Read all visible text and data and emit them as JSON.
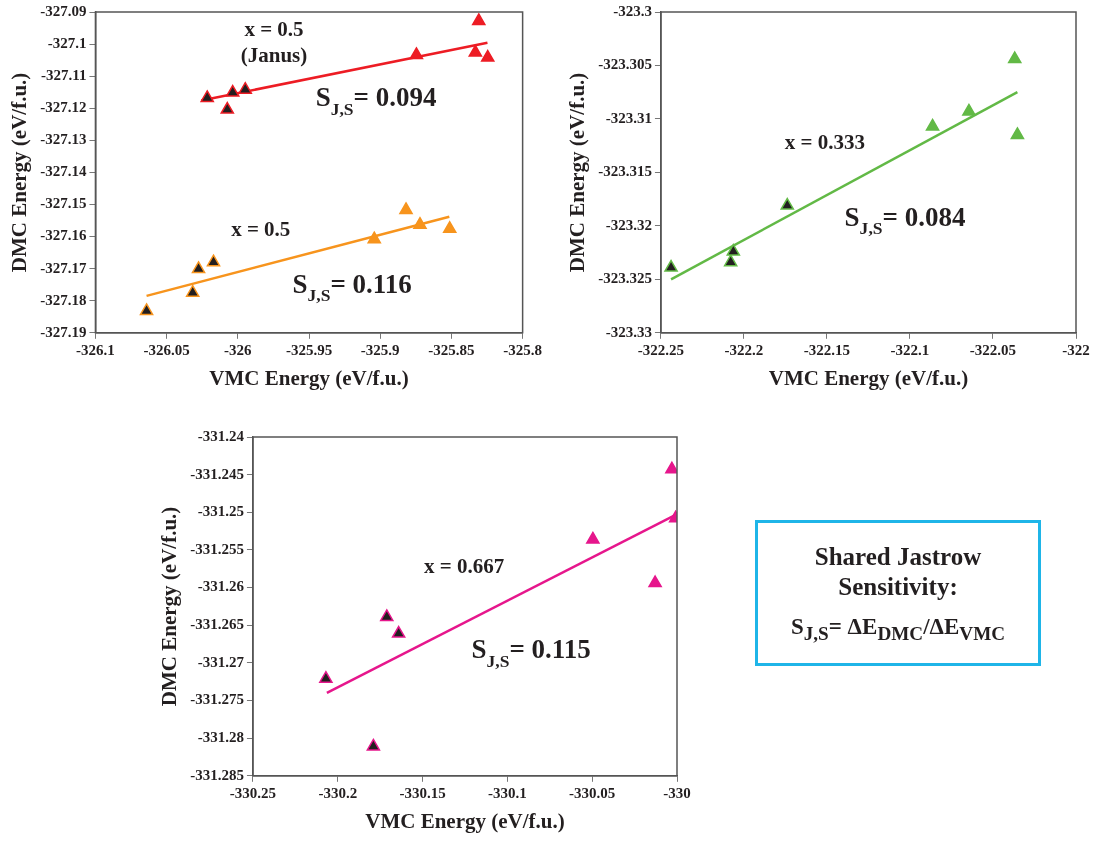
{
  "chart_data": [
    {
      "type": "scatter",
      "xlabel": "VMC Energy (eV/f.u.)",
      "ylabel": "DMC Energy (eV/f.u.)",
      "xlim": [
        -326.1,
        -325.8
      ],
      "xticks": [
        -326.1,
        -326.05,
        -326,
        -325.95,
        -325.9,
        -325.85,
        -325.8
      ],
      "ylim": [
        -327.19,
        -327.09
      ],
      "yticks": [
        -327.19,
        -327.18,
        -327.17,
        -327.16,
        -327.15,
        -327.14,
        -327.13,
        -327.12,
        -327.11,
        -327.1,
        -327.09
      ],
      "legend": false,
      "series": [
        {
          "type": "scatter",
          "marker": "triangle",
          "color": "#ed1c24",
          "colors": [
            "#231f20",
            "#231f20",
            "#231f20",
            "#231f20",
            "#ed1c24",
            "#ed1c24",
            "#ed1c24",
            "#ed1c24"
          ],
          "x": [
            -326.0215,
            -326.0074,
            -326.0036,
            -325.9948,
            -325.8746,
            -325.8308,
            -325.8332,
            -325.8245
          ],
          "values": [
            -327.1168,
            -327.1204,
            -327.1151,
            -327.1142,
            -327.1034,
            -327.0928,
            -327.1026,
            -327.1042
          ]
        },
        {
          "type": "line",
          "marker": "none",
          "color": "#ed1c24",
          "x": [
            -326.0257,
            -325.8247
          ],
          "values": [
            -327.1176,
            -327.0996
          ]
        },
        {
          "type": "scatter",
          "marker": "triangle",
          "color": "#f7941d",
          "colors": [
            "#231f20",
            "#231f20",
            "#231f20",
            "#231f20",
            "#f7941d",
            "#f7941d",
            "#f7941d",
            "#f7941d"
          ],
          "x": [
            -326.0641,
            -326.0317,
            -326.0276,
            -326.0171,
            -325.9042,
            -325.8819,
            -325.8721,
            -325.8512
          ],
          "values": [
            -327.1832,
            -327.1775,
            -327.1701,
            -327.168,
            -327.1608,
            -327.1517,
            -327.1563,
            -327.1576
          ]
        },
        {
          "type": "line",
          "marker": "none",
          "color": "#f7941d",
          "x": [
            -326.0641,
            -325.8515
          ],
          "values": [
            -327.1785,
            -327.1538
          ]
        }
      ],
      "annotations": [
        "x = 0.5\n(Janus)",
        "S$_{J,S}$= 0.094",
        "x = 0.5",
        "S$_{J,S}$= 0.116"
      ]
    },
    {
      "type": "scatter",
      "xlabel": "VMC Energy (eV/f.u.)",
      "ylabel": "DMC Energy (eV/f.u.)",
      "xlim": [
        -322.25,
        -322
      ],
      "xticks": [
        -322.25,
        -322.2,
        -322.15,
        -322.1,
        -322.05,
        -322
      ],
      "ylim": [
        -323.33,
        -323.3
      ],
      "yticks": [
        -323.33,
        -323.325,
        -323.32,
        -323.315,
        -323.31,
        -323.305,
        -323.3
      ],
      "legend": false,
      "series": [
        {
          "type": "scatter",
          "marker": "triangle",
          "color": "#62b946",
          "colors": [
            "#231f20",
            "#231f20",
            "#231f20",
            "#231f20",
            "#62b946",
            "#62b946",
            "#62b946",
            "#62b946"
          ],
          "x": [
            -322.2439,
            -322.208,
            -322.2064,
            -322.1739,
            -322.0864,
            -322.0645,
            -322.0369,
            -322.0353
          ],
          "values": [
            -323.3239,
            -323.3234,
            -323.3224,
            -323.3181,
            -323.3107,
            -323.3093,
            -323.3044,
            -323.3115
          ]
        },
        {
          "type": "line",
          "marker": "none",
          "color": "#62b946",
          "x": [
            -322.2439,
            -322.0353
          ],
          "values": [
            -323.325,
            -323.3075
          ]
        }
      ],
      "annotations": [
        "x = 0.333",
        "S$_{J,S}$= 0.084"
      ]
    },
    {
      "type": "scatter",
      "xlabel": "VMC Energy (eV/f.u.)",
      "ylabel": "DMC Energy (eV/f.u.)",
      "xlim": [
        -330.25,
        -330
      ],
      "xticks": [
        -330.25,
        -330.2,
        -330.15,
        -330.1,
        -330.05,
        -330
      ],
      "ylim": [
        -331.285,
        -331.24
      ],
      "yticks": [
        -331.285,
        -331.28,
        -331.275,
        -331.27,
        -331.265,
        -331.26,
        -331.255,
        -331.25,
        -331.245,
        -331.24
      ],
      "legend": false,
      "series": [
        {
          "type": "scatter",
          "marker": "triangle",
          "color": "#e6168c",
          "colors": [
            "#231f20",
            "#231f20",
            "#231f20",
            "#231f20",
            "#e6168c",
            "#e6168c",
            "#e6168c",
            "#e6168c"
          ],
          "x": [
            -330.207,
            -330.179,
            -330.1711,
            -330.1641,
            -330.0496,
            -330.0129,
            -330.003,
            -330.0008
          ],
          "values": [
            -331.2721,
            -331.2811,
            -331.2639,
            -331.2661,
            -331.2536,
            -331.2594,
            -331.2443,
            -331.2508
          ]
        },
        {
          "type": "line",
          "marker": "none",
          "color": "#e6168c",
          "x": [
            -330.2064,
            -330.0014
          ],
          "values": [
            -331.274,
            -331.2504
          ]
        }
      ],
      "annotations": [
        "x = 0.667",
        "S$_{J,S}$= 0.115"
      ]
    },
    {
      "type": "other",
      "title": "Shared Jastrow Sensitivity:",
      "annotations": [
        "S$_{J,S}$= ΔE$_{DMC}$/ΔE$_{VMC}$"
      ]
    }
  ]
}
